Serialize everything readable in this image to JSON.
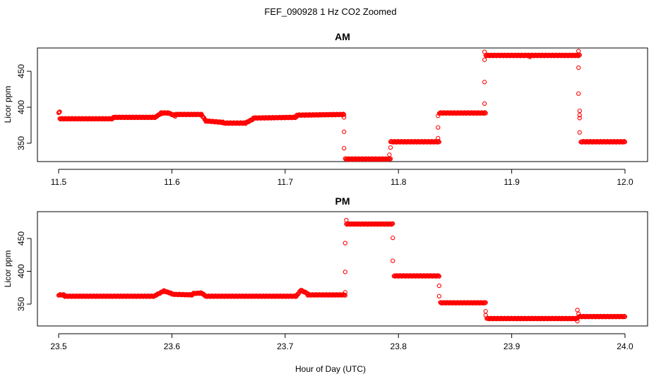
{
  "figure": {
    "title": "FEF_090928  1 Hz CO2 Zoomed",
    "xlabel": "Hour of Day (UTC)"
  },
  "colors": {
    "points": "#ff0000",
    "frame": "#000000"
  },
  "chart_data": [
    {
      "type": "scatter",
      "title": "AM",
      "xlabel": "Hour of Day (UTC)",
      "ylabel": "Licor ppm",
      "xlim": [
        11.5,
        12.0
      ],
      "ylim": [
        322,
        482
      ],
      "xticks": [
        11.5,
        11.6,
        11.7,
        11.8,
        11.9,
        12.0
      ],
      "xtick_labels": [
        "11.5",
        "11.6",
        "11.7",
        "11.8",
        "11.9",
        "12.0"
      ],
      "yticks": [
        350,
        400,
        450
      ],
      "ytick_labels": [
        "350",
        "400",
        "450"
      ],
      "grid": false,
      "marker": "open-circle",
      "levels": [
        {
          "x": [
            11.5,
            11.501
          ],
          "y": [
            393,
            393
          ]
        },
        {
          "x": [
            11.501,
            11.548
          ],
          "y": [
            384,
            384
          ]
        },
        {
          "x": [
            11.548,
            11.585
          ],
          "y": [
            386,
            386
          ]
        },
        {
          "x": [
            11.585,
            11.59
          ],
          "y": [
            386,
            391
          ]
        },
        {
          "x": [
            11.59,
            11.597
          ],
          "y": [
            392,
            392
          ]
        },
        {
          "x": [
            11.597,
            11.603
          ],
          "y": [
            392,
            388
          ]
        },
        {
          "x": [
            11.603,
            11.626
          ],
          "y": [
            390,
            390
          ]
        },
        {
          "x": [
            11.626,
            11.63
          ],
          "y": [
            390,
            381
          ]
        },
        {
          "x": [
            11.63,
            11.645
          ],
          "y": [
            381,
            379
          ]
        },
        {
          "x": [
            11.645,
            11.665
          ],
          "y": [
            378,
            378
          ]
        },
        {
          "x": [
            11.665,
            11.672
          ],
          "y": [
            378,
            384
          ]
        },
        {
          "x": [
            11.672,
            11.71
          ],
          "y": [
            385,
            386
          ]
        },
        {
          "x": [
            11.71,
            11.752
          ],
          "y": [
            389,
            390
          ]
        },
        {
          "x": [
            11.753,
            11.793
          ],
          "y": [
            328,
            328
          ]
        },
        {
          "x": [
            11.793,
            11.836
          ],
          "y": [
            352,
            352
          ]
        },
        {
          "x": [
            11.836,
            11.877
          ],
          "y": [
            392,
            392
          ]
        },
        {
          "x": [
            11.877,
            11.96
          ],
          "y": [
            472,
            472
          ]
        },
        {
          "x": [
            11.961,
            12.0
          ],
          "y": [
            352,
            352
          ]
        }
      ],
      "transition_points": [
        {
          "x": 11.752,
          "y": 386
        },
        {
          "x": 11.752,
          "y": 366
        },
        {
          "x": 11.752,
          "y": 343
        },
        {
          "x": 11.792,
          "y": 334
        },
        {
          "x": 11.793,
          "y": 344
        },
        {
          "x": 11.835,
          "y": 357
        },
        {
          "x": 11.835,
          "y": 372
        },
        {
          "x": 11.835,
          "y": 388
        },
        {
          "x": 11.876,
          "y": 405
        },
        {
          "x": 11.876,
          "y": 435
        },
        {
          "x": 11.876,
          "y": 466
        },
        {
          "x": 11.876,
          "y": 477
        },
        {
          "x": 11.916,
          "y": 470
        },
        {
          "x": 11.959,
          "y": 478
        },
        {
          "x": 11.959,
          "y": 455
        },
        {
          "x": 11.959,
          "y": 419
        },
        {
          "x": 11.96,
          "y": 395
        },
        {
          "x": 11.96,
          "y": 389
        },
        {
          "x": 11.96,
          "y": 385
        },
        {
          "x": 11.96,
          "y": 365
        }
      ]
    },
    {
      "type": "scatter",
      "title": "PM",
      "xlabel": "Hour of Day (UTC)",
      "ylabel": "Licor ppm",
      "xlim": [
        23.5,
        24.0
      ],
      "ylim": [
        322,
        482
      ],
      "xticks": [
        23.5,
        23.6,
        23.7,
        23.8,
        23.9,
        24.0
      ],
      "xtick_labels": [
        "23.5",
        "23.6",
        "23.7",
        "23.8",
        "23.9",
        "24.0"
      ],
      "yticks": [
        350,
        400,
        450
      ],
      "ytick_labels": [
        "350",
        "400",
        "450"
      ],
      "grid": false,
      "marker": "open-circle",
      "levels": [
        {
          "x": [
            23.5,
            23.505
          ],
          "y": [
            364,
            364
          ]
        },
        {
          "x": [
            23.505,
            23.585
          ],
          "y": [
            362,
            362
          ]
        },
        {
          "x": [
            23.585,
            23.593
          ],
          "y": [
            363,
            370
          ]
        },
        {
          "x": [
            23.593,
            23.6
          ],
          "y": [
            370,
            366
          ]
        },
        {
          "x": [
            23.6,
            23.618
          ],
          "y": [
            365,
            364
          ]
        },
        {
          "x": [
            23.618,
            23.626
          ],
          "y": [
            366,
            367
          ]
        },
        {
          "x": [
            23.626,
            23.63
          ],
          "y": [
            367,
            362
          ]
        },
        {
          "x": [
            23.63,
            23.71
          ],
          "y": [
            362,
            362
          ]
        },
        {
          "x": [
            23.71,
            23.714
          ],
          "y": [
            363,
            371
          ]
        },
        {
          "x": [
            23.714,
            23.72
          ],
          "y": [
            371,
            366
          ]
        },
        {
          "x": [
            23.72,
            23.753
          ],
          "y": [
            364,
            364
          ]
        },
        {
          "x": [
            23.754,
            23.795
          ],
          "y": [
            472,
            472
          ]
        },
        {
          "x": [
            23.796,
            23.836
          ],
          "y": [
            393,
            393
          ]
        },
        {
          "x": [
            23.837,
            23.877
          ],
          "y": [
            352,
            352
          ]
        },
        {
          "x": [
            23.878,
            23.958
          ],
          "y": [
            328,
            328
          ]
        },
        {
          "x": [
            23.959,
            24.0
          ],
          "y": [
            331,
            331
          ]
        }
      ],
      "transition_points": [
        {
          "x": 23.753,
          "y": 368
        },
        {
          "x": 23.753,
          "y": 399
        },
        {
          "x": 23.753,
          "y": 443
        },
        {
          "x": 23.754,
          "y": 478
        },
        {
          "x": 23.795,
          "y": 451
        },
        {
          "x": 23.795,
          "y": 416
        },
        {
          "x": 23.836,
          "y": 378
        },
        {
          "x": 23.836,
          "y": 362
        },
        {
          "x": 23.877,
          "y": 339
        },
        {
          "x": 23.877,
          "y": 333
        },
        {
          "x": 23.958,
          "y": 341
        },
        {
          "x": 23.958,
          "y": 324
        },
        {
          "x": 23.959,
          "y": 335
        }
      ]
    }
  ]
}
